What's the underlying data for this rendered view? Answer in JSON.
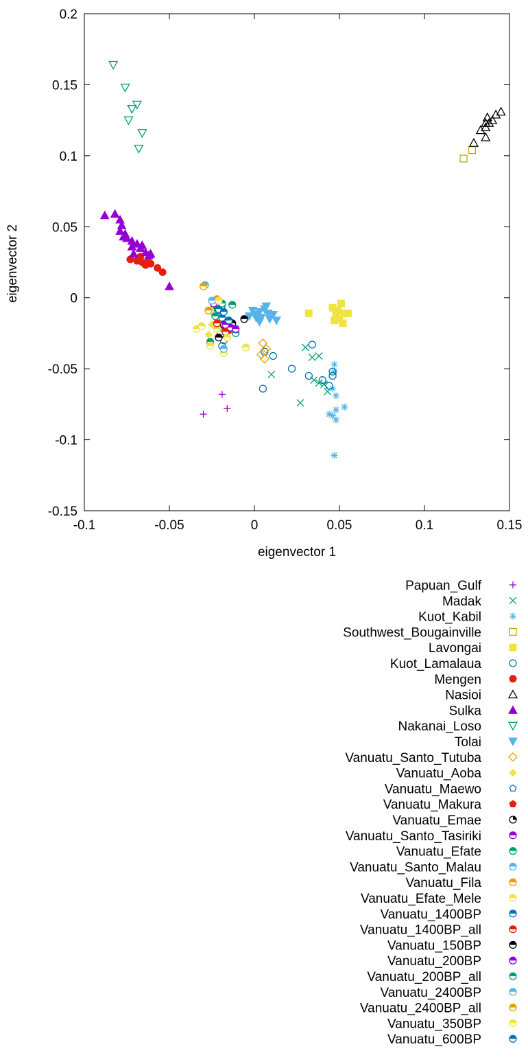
{
  "chart_data": {
    "type": "scatter",
    "title": "",
    "xlabel": "eigenvector 1",
    "ylabel": "eigenvector 2",
    "xlim": [
      -0.1,
      0.15
    ],
    "ylim": [
      -0.15,
      0.2
    ],
    "xticks": [
      "-0.1",
      "-0.05",
      "0",
      "0.05",
      "0.1",
      "0.15"
    ],
    "yticks": [
      "-0.15",
      "-0.1",
      "-0.05",
      "0",
      "0.05",
      "0.1",
      "0.15",
      "0.2"
    ],
    "legend_position": "below",
    "series": [
      {
        "name": "Papuan_Gulf",
        "color": "#9400d3",
        "marker": "plus",
        "points": [
          [
            -0.03,
            -0.082
          ],
          [
            -0.019,
            -0.068
          ],
          [
            -0.016,
            -0.078
          ]
        ]
      },
      {
        "name": "Madak",
        "color": "#009e73",
        "marker": "cross",
        "points": [
          [
            0.01,
            -0.054
          ],
          [
            0.027,
            -0.074
          ],
          [
            0.03,
            -0.035
          ],
          [
            0.034,
            -0.042
          ],
          [
            0.038,
            -0.041
          ],
          [
            0.035,
            -0.058
          ],
          [
            0.038,
            -0.06
          ],
          [
            0.041,
            -0.061
          ],
          [
            0.043,
            -0.066
          ]
        ]
      },
      {
        "name": "Kuot_Kabil",
        "color": "#56b4e9",
        "marker": "star",
        "points": [
          [
            0.047,
            -0.047
          ],
          [
            0.047,
            -0.052
          ],
          [
            0.046,
            -0.064
          ],
          [
            0.048,
            -0.069
          ],
          [
            0.048,
            -0.079
          ],
          [
            0.048,
            -0.086
          ],
          [
            0.044,
            -0.082
          ],
          [
            0.046,
            -0.083
          ],
          [
            0.053,
            -0.077
          ],
          [
            0.047,
            -0.111
          ]
        ]
      },
      {
        "name": "Southwest_Bougainville",
        "color": "#c8a600",
        "marker": "square-open",
        "points": [
          [
            0.123,
            0.098
          ],
          [
            0.128,
            0.104
          ]
        ]
      },
      {
        "name": "Lavongai",
        "color": "#f0e442",
        "marker": "square-filled",
        "points": [
          [
            0.032,
            -0.011
          ],
          [
            0.046,
            -0.007
          ],
          [
            0.049,
            -0.009
          ],
          [
            0.051,
            -0.004
          ],
          [
            0.053,
            -0.011
          ],
          [
            0.055,
            -0.011
          ],
          [
            0.047,
            -0.016
          ],
          [
            0.05,
            -0.015
          ],
          [
            0.052,
            -0.018
          ],
          [
            0.048,
            -0.012
          ]
        ]
      },
      {
        "name": "Kuot_Lamalaua",
        "color": "#0072b2",
        "marker": "circle-open",
        "points": [
          [
            0.005,
            -0.064
          ],
          [
            0.011,
            -0.041
          ],
          [
            0.022,
            -0.05
          ],
          [
            0.032,
            -0.055
          ],
          [
            0.034,
            -0.033
          ],
          [
            0.04,
            -0.058
          ],
          [
            0.044,
            -0.062
          ],
          [
            0.046,
            -0.052
          ],
          [
            0.046,
            -0.055
          ],
          [
            0.006,
            -0.038
          ],
          [
            -0.019,
            -0.034
          ],
          [
            -0.018,
            -0.03
          ]
        ]
      },
      {
        "name": "Mengen",
        "color": "#e51e10",
        "marker": "circle-filled",
        "points": [
          [
            -0.073,
            0.027
          ],
          [
            -0.069,
            0.026
          ],
          [
            -0.068,
            0.028
          ],
          [
            -0.066,
            0.025
          ],
          [
            -0.064,
            0.023
          ],
          [
            -0.062,
            0.025
          ],
          [
            -0.061,
            0.024
          ],
          [
            -0.057,
            0.021
          ],
          [
            -0.054,
            0.018
          ],
          [
            -0.067,
            0.029
          ],
          [
            -0.063,
            0.025
          ]
        ]
      },
      {
        "name": "Nasioi",
        "color": "#000000",
        "marker": "triangle-up-open",
        "points": [
          [
            0.129,
            0.109
          ],
          [
            0.133,
            0.118
          ],
          [
            0.136,
            0.113
          ],
          [
            0.136,
            0.12
          ],
          [
            0.137,
            0.127
          ],
          [
            0.138,
            0.123
          ],
          [
            0.14,
            0.125
          ],
          [
            0.142,
            0.129
          ],
          [
            0.145,
            0.131
          ],
          [
            0.136,
            0.123
          ]
        ]
      },
      {
        "name": "Sulka",
        "color": "#9400d3",
        "marker": "triangle-up-filled",
        "points": [
          [
            -0.088,
            0.058
          ],
          [
            -0.082,
            0.059
          ],
          [
            -0.079,
            0.055
          ],
          [
            -0.078,
            0.051
          ],
          [
            -0.079,
            0.047
          ],
          [
            -0.076,
            0.045
          ],
          [
            -0.075,
            0.042
          ],
          [
            -0.077,
            0.043
          ],
          [
            -0.072,
            0.04
          ],
          [
            -0.072,
            0.036
          ],
          [
            -0.069,
            0.038
          ],
          [
            -0.067,
            0.035
          ],
          [
            -0.066,
            0.037
          ],
          [
            -0.064,
            0.032
          ],
          [
            -0.062,
            0.03
          ],
          [
            -0.061,
            0.031
          ],
          [
            -0.071,
            0.031
          ],
          [
            -0.05,
            0.008
          ]
        ]
      },
      {
        "name": "Nakanai_Loso",
        "color": "#009e73",
        "marker": "triangle-down-open",
        "points": [
          [
            -0.083,
            0.164
          ],
          [
            -0.076,
            0.148
          ],
          [
            -0.074,
            0.125
          ],
          [
            -0.072,
            0.133
          ],
          [
            -0.069,
            0.136
          ],
          [
            -0.066,
            0.116
          ],
          [
            -0.068,
            0.105
          ]
        ]
      },
      {
        "name": "Tolai",
        "color": "#56b4e9",
        "marker": "triangle-down-filled",
        "points": [
          [
            -0.003,
            -0.013
          ],
          [
            -0.001,
            -0.009
          ],
          [
            0.001,
            -0.012
          ],
          [
            0.003,
            -0.01
          ],
          [
            0.004,
            -0.014
          ],
          [
            0.006,
            -0.008
          ],
          [
            0.008,
            -0.011
          ],
          [
            0.009,
            -0.015
          ],
          [
            0.011,
            -0.012
          ],
          [
            0.013,
            -0.016
          ],
          [
            0.003,
            -0.017
          ],
          [
            0.001,
            -0.014
          ],
          [
            0.007,
            -0.006
          ]
        ]
      },
      {
        "name": "Vanuatu_Santo_Tutuba",
        "color": "#e69f00",
        "marker": "diamond-open",
        "points": [
          [
            0.005,
            -0.032
          ],
          [
            0.007,
            -0.036
          ],
          [
            0.006,
            -0.043
          ],
          [
            0.004,
            -0.04
          ]
        ]
      },
      {
        "name": "Vanuatu_Aoba",
        "color": "#f0e442",
        "marker": "diamond-filled",
        "points": [
          [
            -0.025,
            -0.019
          ],
          [
            -0.022,
            -0.021
          ],
          [
            -0.027,
            -0.026
          ]
        ]
      },
      {
        "name": "Vanuatu_Maewo",
        "color": "#0072b2",
        "marker": "pentagon-open",
        "points": [
          [
            -0.024,
            -0.005
          ],
          [
            -0.021,
            -0.009
          ],
          [
            -0.019,
            -0.006
          ]
        ]
      },
      {
        "name": "Vanuatu_Makura",
        "color": "#e51e10",
        "marker": "pentagon-filled",
        "points": [
          [
            -0.018,
            -0.022
          ],
          [
            -0.015,
            -0.023
          ]
        ]
      },
      {
        "name": "Vanuatu_Emae",
        "color": "#000000",
        "marker": "circle-ring",
        "points": [
          [
            -0.02,
            -0.026
          ],
          [
            -0.018,
            -0.019
          ],
          [
            -0.013,
            -0.018
          ]
        ]
      },
      {
        "name": "Vanuatu_Santo_Tasiriki",
        "color": "#9400d3",
        "marker": "circle-half",
        "points": [
          [
            -0.014,
            -0.021
          ],
          [
            -0.017,
            -0.019
          ]
        ]
      },
      {
        "name": "Vanuatu_Efate",
        "color": "#009e73",
        "marker": "circle-half",
        "points": [
          [
            -0.026,
            -0.031
          ],
          [
            -0.013,
            -0.005
          ],
          [
            -0.024,
            -0.01
          ],
          [
            -0.011,
            -0.025
          ]
        ]
      },
      {
        "name": "Vanuatu_Santo_Malau",
        "color": "#56b4e9",
        "marker": "circle-half",
        "points": [
          [
            -0.029,
            0.009
          ],
          [
            -0.02,
            -0.024
          ]
        ]
      },
      {
        "name": "Vanuatu_Fila",
        "color": "#e69f00",
        "marker": "circle-half",
        "points": [
          [
            -0.03,
            0.008
          ],
          [
            -0.022,
            -0.001
          ]
        ]
      },
      {
        "name": "Vanuatu_Efate_Mele",
        "color": "#f0e442",
        "marker": "circle-half",
        "points": [
          [
            -0.034,
            -0.022
          ],
          [
            -0.031,
            -0.02
          ],
          [
            -0.026,
            -0.034
          ],
          [
            -0.022,
            -0.022
          ],
          [
            -0.018,
            -0.039
          ],
          [
            -0.005,
            -0.035
          ],
          [
            -0.026,
            -0.009
          ]
        ]
      },
      {
        "name": "Vanuatu_1400BP",
        "color": "#0072b2",
        "marker": "circle-half",
        "points": [
          [
            -0.021,
            -0.008
          ],
          [
            -0.019,
            -0.014
          ]
        ]
      },
      {
        "name": "Vanuatu_1400BP_all",
        "color": "#e51e10",
        "marker": "circle-half",
        "points": [
          [
            -0.022,
            -0.018
          ],
          [
            -0.017,
            -0.024
          ]
        ]
      },
      {
        "name": "Vanuatu_150BP",
        "color": "#000000",
        "marker": "circle-half",
        "points": [
          [
            -0.006,
            -0.015
          ],
          [
            -0.021,
            -0.028
          ]
        ]
      },
      {
        "name": "Vanuatu_200BP",
        "color": "#9400d3",
        "marker": "circle-half",
        "points": [
          [
            -0.024,
            -0.004
          ],
          [
            -0.011,
            -0.022
          ]
        ]
      },
      {
        "name": "Vanuatu_200BP_all",
        "color": "#009e73",
        "marker": "circle-half",
        "points": [
          [
            -0.023,
            -0.013
          ],
          [
            -0.019,
            -0.004
          ]
        ]
      },
      {
        "name": "Vanuatu_2400BP",
        "color": "#56b4e9",
        "marker": "circle-half",
        "points": [
          [
            -0.025,
            -0.002
          ],
          [
            -0.018,
            -0.036
          ]
        ]
      },
      {
        "name": "Vanuatu_2400BP_all",
        "color": "#e69f00",
        "marker": "circle-half",
        "points": [
          [
            -0.027,
            -0.009
          ]
        ]
      },
      {
        "name": "Vanuatu_350BP",
        "color": "#f0e442",
        "marker": "circle-half",
        "points": [
          [
            -0.021,
            -0.002
          ],
          [
            -0.016,
            -0.028
          ]
        ]
      },
      {
        "name": "Vanuatu_600BP",
        "color": "#0072b2",
        "marker": "circle-half",
        "points": [
          [
            -0.018,
            -0.01
          ],
          [
            -0.015,
            -0.016
          ]
        ]
      }
    ]
  }
}
